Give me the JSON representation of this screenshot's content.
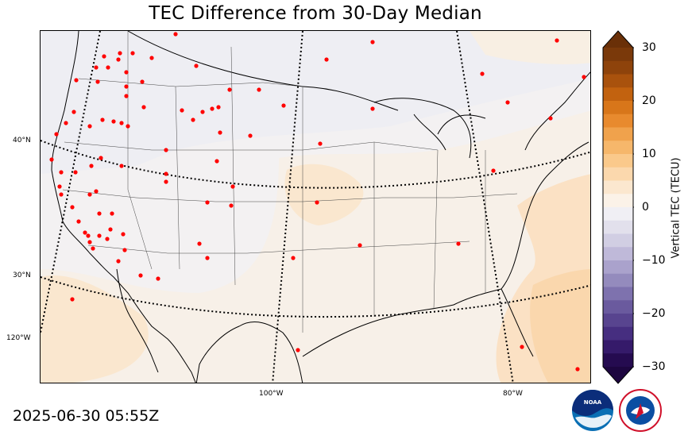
{
  "title": "TEC Difference from 30-Day Median",
  "timestamp": "2025-06-30 05:55Z",
  "map": {
    "lat_labels": [
      "40°N",
      "30°N"
    ],
    "lon_labels": [
      "120°W",
      "100°W",
      "80°W"
    ],
    "station_marker_color": "#ff0000",
    "background_color": "#f3f1f2"
  },
  "colorbar": {
    "label": "Vertical TEC (TECU)",
    "ticks": [
      "30",
      "20",
      "10",
      "0",
      "−10",
      "−20",
      "−30"
    ],
    "range": [
      -30,
      30
    ],
    "positive_colors": [
      "#fbf2e8",
      "#fbe7cf",
      "#fbd8ad",
      "#fac98b",
      "#f6b76b",
      "#f0a24c",
      "#e88a2e",
      "#d8761a",
      "#c2620f",
      "#a9520d",
      "#8e430b",
      "#7a390a"
    ],
    "negative_colors": [
      "#f0eff4",
      "#e2e0ec",
      "#d1cee3",
      "#bfb9d9",
      "#aaa2cc",
      "#948bbd",
      "#7e72ae",
      "#6a5a9e",
      "#58448f",
      "#462e80",
      "#351a6a",
      "#250b50"
    ]
  },
  "logos": {
    "left": "noaa-logo",
    "right": "nws-logo",
    "left_text": "NOAA",
    "right_text": "NATIONAL WEATHER SERVICE"
  }
}
